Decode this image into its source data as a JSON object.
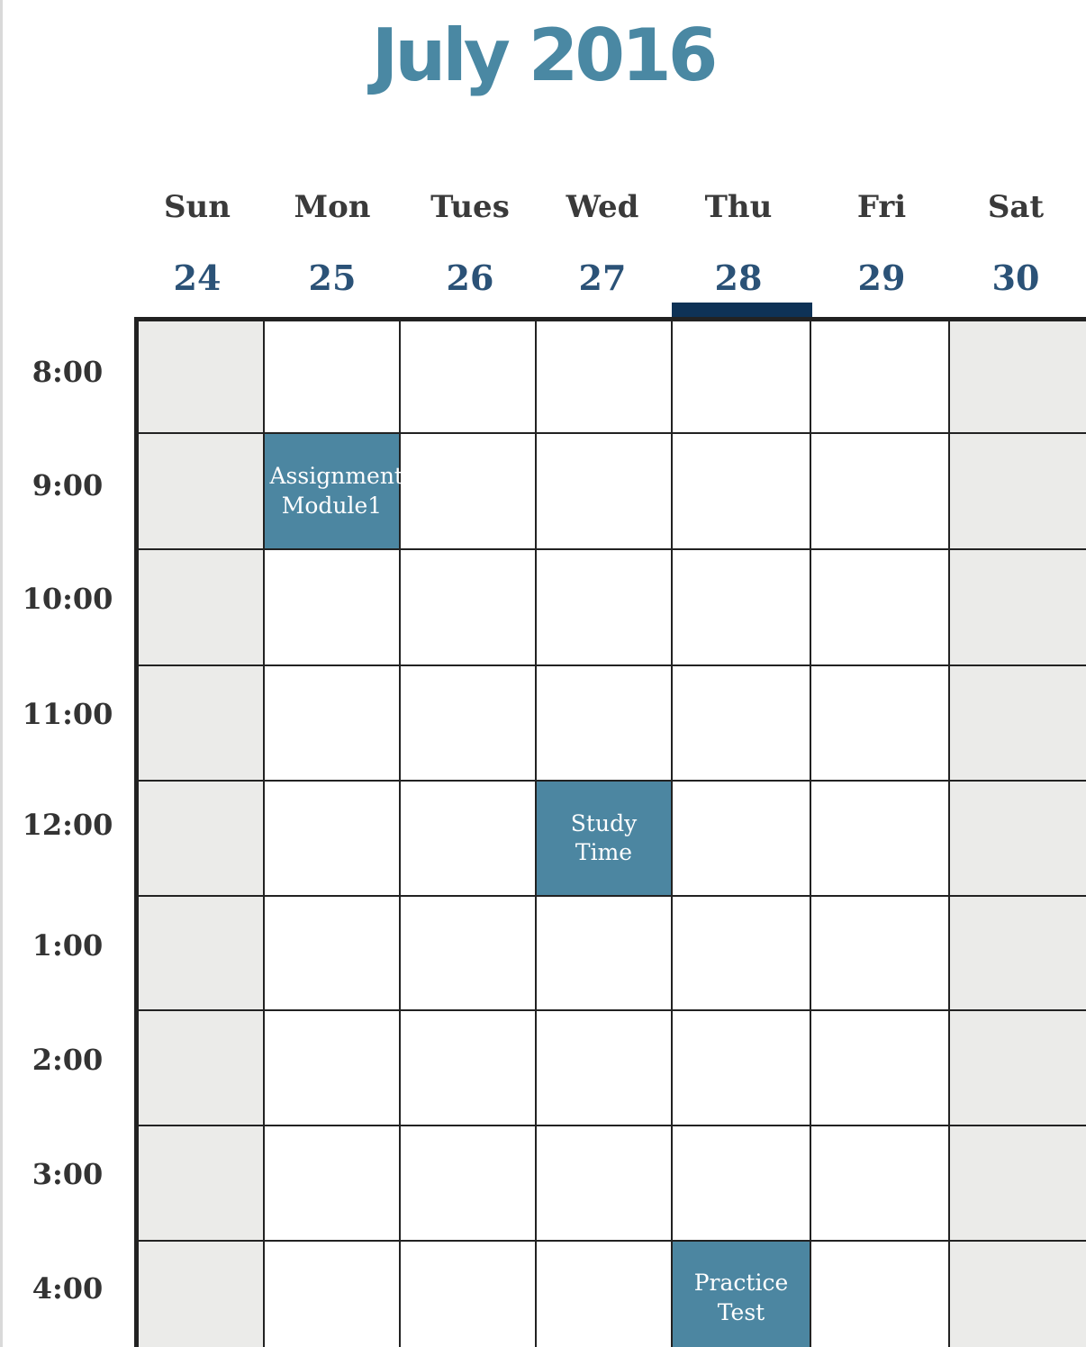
{
  "calendar": {
    "title": "July 2016",
    "days": [
      {
        "name": "Sun",
        "date": "24"
      },
      {
        "name": "Mon",
        "date": "25"
      },
      {
        "name": "Tues",
        "date": "26"
      },
      {
        "name": "Wed",
        "date": "27"
      },
      {
        "name": "Thu",
        "date": "28"
      },
      {
        "name": "Fri",
        "date": "29"
      },
      {
        "name": "Sat",
        "date": "30"
      }
    ],
    "times": [
      "8:00",
      "9:00",
      "10:00",
      "11:00",
      "12:00",
      "1:00",
      "2:00",
      "3:00",
      "4:00"
    ],
    "events": [
      {
        "title": "Assignment Module1",
        "day": "Mon",
        "time": "9:00"
      },
      {
        "title": "Study Time",
        "day": "Wed",
        "time": "12:00"
      },
      {
        "title": "Practice Test",
        "day": "Thu",
        "time": "4:00"
      }
    ],
    "accent_color": "#4c86a1",
    "today_marker_color": "#0e3256",
    "weekend_fill": "#ebebe9"
  }
}
